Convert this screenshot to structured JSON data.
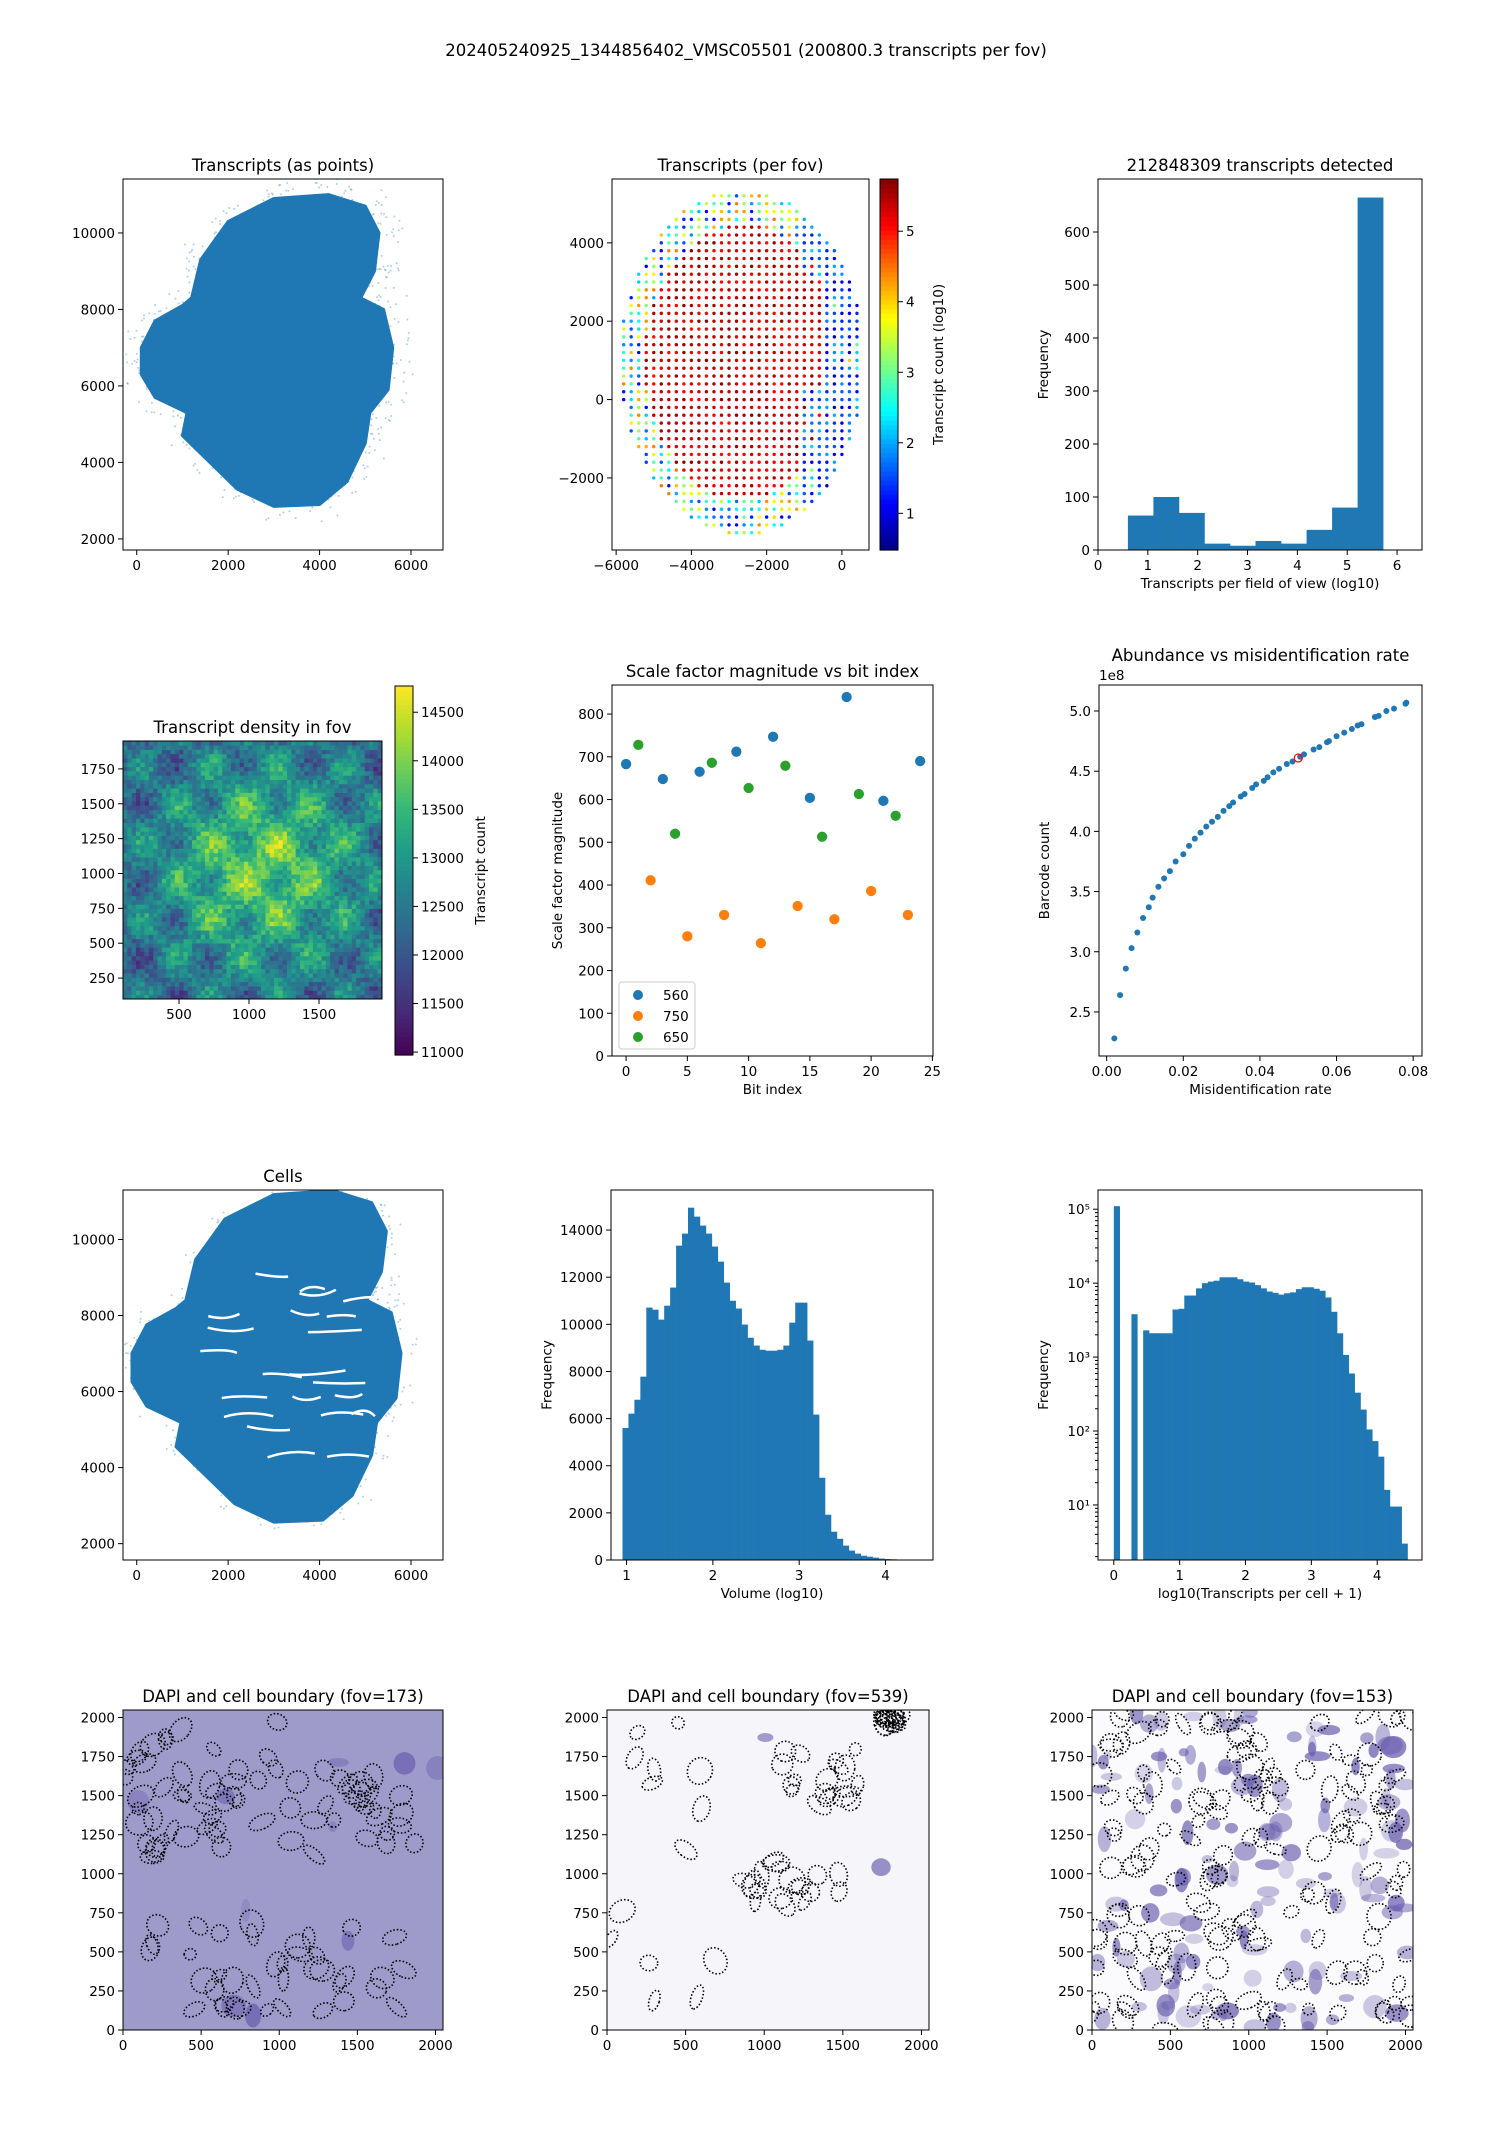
{
  "suptitle": "202405240925_1344856402_VMSC05501 (200800.3 transcripts per fov)",
  "chart_data": [
    {
      "type": "scatter",
      "title": "Transcripts (as points)",
      "xlabel": "",
      "ylabel": "",
      "xlim": [
        -300,
        6700
      ],
      "ylim": [
        1710,
        11410
      ],
      "xticks": [
        0,
        2000,
        4000,
        6000
      ],
      "xtick_labels": [
        "0",
        "2000",
        "4000",
        "6000"
      ],
      "yticks": [
        2000,
        4000,
        6000,
        8000,
        10000
      ],
      "ytick_labels": [
        "2000",
        "4000",
        "6000",
        "8000",
        "10000"
      ],
      "color": "#1f77b4"
    },
    {
      "type": "scatter",
      "title": "Transcripts (per fov)",
      "xlabel": "",
      "ylabel": "",
      "xlim": [
        -6110,
        720
      ],
      "ylim": [
        -3840,
        5630
      ],
      "xticks": [
        -6000,
        -4000,
        -2000,
        0
      ],
      "xtick_labels": [
        "−6000",
        "−4000",
        "−2000",
        "0"
      ],
      "yticks": [
        -2000,
        0,
        2000,
        4000
      ],
      "ytick_labels": [
        "−2000",
        "0",
        "2000",
        "4000"
      ],
      "fov_grid_spacing": 200,
      "colorbar": {
        "label": "Transcript count (log10)",
        "range": [
          0.48,
          5.74
        ],
        "ticks": [
          1,
          2,
          3,
          4,
          5
        ],
        "tick_labels": [
          "1",
          "2",
          "3",
          "4",
          "5"
        ],
        "cmap": "jet"
      }
    },
    {
      "type": "bar",
      "title": "212848309 transcripts detected",
      "xlabel": "Transcripts per field of view (log10)",
      "ylabel": "Frequency",
      "xlim": [
        0,
        6.5
      ],
      "ylim": [
        0,
        700
      ],
      "bin_start": 0.6,
      "bin_width": 0.512,
      "values": [
        65,
        100,
        70,
        12,
        8,
        17,
        12,
        38,
        80,
        665
      ],
      "xticks": [
        0,
        1,
        2,
        3,
        4,
        5,
        6
      ],
      "xtick_labels": [
        "0",
        "1",
        "2",
        "3",
        "4",
        "5",
        "6"
      ],
      "yticks": [
        0,
        100,
        200,
        300,
        400,
        500,
        600
      ],
      "ytick_labels": [
        "0",
        "100",
        "200",
        "300",
        "400",
        "500",
        "600"
      ],
      "color": "#1f77b4"
    },
    {
      "type": "heatmap",
      "title": "Transcript density in fov",
      "xlabel": "",
      "ylabel": "",
      "xlim": [
        100,
        1950
      ],
      "ylim": [
        100,
        1950
      ],
      "xticks": [
        500,
        1000,
        1500
      ],
      "xtick_labels": [
        "500",
        "1000",
        "1500"
      ],
      "yticks": [
        250,
        500,
        750,
        1000,
        1250,
        1500,
        1750
      ],
      "ytick_labels": [
        "250",
        "500",
        "750",
        "1000",
        "1250",
        "1500",
        "1750"
      ],
      "colorbar": {
        "label": "Transcript count",
        "range": [
          10970,
          14770
        ],
        "ticks": [
          11000,
          11500,
          12000,
          12500,
          13000,
          13500,
          14000,
          14500
        ],
        "tick_labels": [
          "11000",
          "11500",
          "12000",
          "12500",
          "13000",
          "13500",
          "14000",
          "14500"
        ],
        "cmap": "viridis"
      }
    },
    {
      "type": "scatter",
      "title": "Scale factor magnitude vs bit index",
      "xlabel": "Bit index",
      "ylabel": "Scale factor magnitude",
      "xlim": [
        -1.15,
        25.05
      ],
      "ylim": [
        0,
        868
      ],
      "xticks": [
        0,
        5,
        10,
        15,
        20,
        25
      ],
      "xtick_labels": [
        "0",
        "5",
        "10",
        "15",
        "20",
        "25"
      ],
      "yticks": [
        0,
        100,
        200,
        300,
        400,
        500,
        600,
        700,
        800
      ],
      "ytick_labels": [
        "0",
        "100",
        "200",
        "300",
        "400",
        "500",
        "600",
        "700",
        "800"
      ],
      "legend": "lower-left",
      "series": [
        {
          "name": "560",
          "color": "#1f77b4",
          "x": [
            0,
            3,
            6,
            9,
            12,
            15,
            18,
            21,
            24
          ],
          "y": [
            683,
            648,
            665,
            712,
            747,
            604,
            840,
            597,
            690
          ]
        },
        {
          "name": "750",
          "color": "#ff7f0e",
          "x": [
            2,
            5,
            8,
            11,
            14,
            17,
            20,
            23
          ],
          "y": [
            411,
            280,
            330,
            264,
            351,
            320,
            386,
            330
          ]
        },
        {
          "name": "650",
          "color": "#2ca02c",
          "x": [
            1,
            4,
            7,
            10,
            13,
            16,
            19,
            22
          ],
          "y": [
            728,
            520,
            686,
            627,
            679,
            513,
            613,
            562
          ]
        }
      ]
    },
    {
      "type": "scatter",
      "title": "Abundance vs misidentification rate",
      "xlabel": "Misidentification rate",
      "ylabel": "Barcode count",
      "offset_text": "1e8",
      "xlim": [
        -0.002,
        0.0823
      ],
      "ylim": [
        2.134,
        5.216
      ],
      "xticks": [
        0,
        0.02,
        0.04,
        0.06,
        0.08
      ],
      "xtick_labels": [
        "0.00",
        "0.02",
        "0.04",
        "0.06",
        "0.08"
      ],
      "yticks": [
        2.5,
        3.0,
        3.5,
        4.0,
        4.5,
        5.0
      ],
      "ytick_labels": [
        "2.5",
        "3.0",
        "3.5",
        "4.0",
        "4.5",
        "5.0"
      ],
      "color": "#1f77b4",
      "x": [
        0.002,
        0.0035,
        0.005,
        0.0065,
        0.008,
        0.0095,
        0.011,
        0.012,
        0.0135,
        0.015,
        0.0165,
        0.018,
        0.02,
        0.0215,
        0.023,
        0.0245,
        0.026,
        0.0275,
        0.029,
        0.0305,
        0.032,
        0.033,
        0.035,
        0.036,
        0.038,
        0.039,
        0.041,
        0.042,
        0.0435,
        0.045,
        0.047,
        0.0485,
        0.0505,
        0.0515,
        0.054,
        0.0555,
        0.0575,
        0.058,
        0.06,
        0.062,
        0.064,
        0.0655,
        0.0665,
        0.07,
        0.071,
        0.073,
        0.075,
        0.078,
        0.0782
      ],
      "y": [
        2.28,
        2.64,
        2.86,
        3.03,
        3.16,
        3.28,
        3.37,
        3.45,
        3.54,
        3.61,
        3.67,
        3.75,
        3.81,
        3.88,
        3.94,
        3.99,
        4.04,
        4.08,
        4.12,
        4.17,
        4.21,
        4.24,
        4.29,
        4.31,
        4.36,
        4.39,
        4.42,
        4.45,
        4.49,
        4.52,
        4.56,
        4.58,
        4.62,
        4.64,
        4.68,
        4.7,
        4.74,
        4.75,
        4.79,
        4.82,
        4.85,
        4.88,
        4.89,
        4.95,
        4.96,
        5.0,
        5.02,
        5.06,
        5.07
      ],
      "highlight": {
        "x": 0.05,
        "y": 4.61,
        "color": "#ff0000"
      }
    },
    {
      "type": "scatter",
      "title": "Cells",
      "xlabel": "",
      "ylabel": "",
      "xlim": [
        -300,
        6700
      ],
      "ylim": [
        1570,
        11300
      ],
      "xticks": [
        0,
        2000,
        4000,
        6000
      ],
      "xtick_labels": [
        "0",
        "2000",
        "4000",
        "6000"
      ],
      "yticks": [
        2000,
        4000,
        6000,
        8000,
        10000
      ],
      "ytick_labels": [
        "2000",
        "4000",
        "6000",
        "8000",
        "10000"
      ],
      "color": "#1f77b4"
    },
    {
      "type": "bar",
      "title": "",
      "xlabel": "Volume (log10)",
      "ylabel": "Frequency",
      "xlim": [
        0.82,
        4.55
      ],
      "ylim": [
        0,
        15700
      ],
      "bin_start": 0.953,
      "bin_width": 0.069,
      "values": [
        5600,
        6210,
        6800,
        7780,
        10710,
        10620,
        10200,
        10790,
        11560,
        13340,
        13850,
        14950,
        14570,
        14190,
        13850,
        13300,
        12660,
        11770,
        11000,
        10670,
        9990,
        9430,
        9100,
        8920,
        8880,
        8880,
        8920,
        9100,
        10070,
        10920,
        10920,
        9310,
        6170,
        3490,
        1920,
        1200,
        900,
        610,
        400,
        270,
        180,
        140,
        100,
        60,
        40,
        30
      ],
      "xticks": [
        1,
        2,
        3,
        4
      ],
      "xtick_labels": [
        "1",
        "2",
        "3",
        "4"
      ],
      "yticks": [
        0,
        2000,
        4000,
        6000,
        8000,
        10000,
        12000,
        14000
      ],
      "ytick_labels": [
        "0",
        "2000",
        "4000",
        "6000",
        "8000",
        "10000",
        "12000",
        "14000"
      ],
      "color": "#1f77b4"
    },
    {
      "type": "bar",
      "title": "",
      "xlabel": "log10(Transcripts per cell + 1)",
      "ylabel": "Frequency",
      "yscale": "log",
      "xlim": [
        -0.24,
        4.68
      ],
      "ylim": [
        1.8,
        182000
      ],
      "bin_start": 0,
      "bin_width": 0.0892,
      "values": [
        110000,
        0,
        0,
        3800,
        0,
        2300,
        2100,
        2100,
        2100,
        2100,
        4400,
        4500,
        6800,
        6800,
        8500,
        10000,
        10500,
        10800,
        12000,
        12000,
        12000,
        11300,
        10500,
        10200,
        9400,
        8500,
        7700,
        7400,
        7000,
        7300,
        7500,
        8300,
        8800,
        8800,
        8400,
        7900,
        6400,
        4100,
        2100,
        1070,
        600,
        330,
        195,
        105,
        73,
        45,
        16,
        9.5,
        9.5,
        3.0
      ],
      "xticks": [
        0,
        1,
        2,
        3,
        4
      ],
      "xtick_labels": [
        "0",
        "1",
        "2",
        "3",
        "4"
      ],
      "yticks": [
        10,
        100,
        1000,
        10000,
        100000
      ],
      "ytick_labels": [
        "10¹",
        "10²",
        "10³",
        "10⁴",
        "10⁵"
      ],
      "color": "#1f77b4"
    },
    {
      "type": "image",
      "title": "DAPI and cell boundary (fov=173)",
      "xlim": [
        0,
        2048
      ],
      "ylim": [
        0,
        2048
      ],
      "xticks": [
        0,
        500,
        1000,
        1500,
        2000
      ],
      "xtick_labels": [
        "0",
        "500",
        "1000",
        "1500",
        "2000"
      ],
      "yticks": [
        0,
        250,
        500,
        750,
        1000,
        1250,
        1500,
        1750,
        2000
      ],
      "ytick_labels": [
        "0",
        "250",
        "500",
        "750",
        "1000",
        "1250",
        "1500",
        "1750",
        "2000"
      ],
      "background": "#9e9bca"
    },
    {
      "type": "image",
      "title": "DAPI and cell boundary (fov=539)",
      "xlim": [
        0,
        2048
      ],
      "ylim": [
        0,
        2048
      ],
      "xticks": [
        0,
        500,
        1000,
        1500,
        2000
      ],
      "xtick_labels": [
        "0",
        "500",
        "1000",
        "1500",
        "2000"
      ],
      "yticks": [
        0,
        250,
        500,
        750,
        1000,
        1250,
        1500,
        1750,
        2000
      ],
      "ytick_labels": [
        "0",
        "250",
        "500",
        "750",
        "1000",
        "1250",
        "1500",
        "1750",
        "2000"
      ],
      "background": "#f6f5fa"
    },
    {
      "type": "image",
      "title": "DAPI and cell boundary (fov=153)",
      "xlim": [
        0,
        2048
      ],
      "ylim": [
        0,
        2048
      ],
      "xticks": [
        0,
        500,
        1000,
        1500,
        2000
      ],
      "xtick_labels": [
        "0",
        "500",
        "1000",
        "1500",
        "2000"
      ],
      "yticks": [
        0,
        250,
        500,
        750,
        1000,
        1250,
        1500,
        1750,
        2000
      ],
      "ytick_labels": [
        "0",
        "250",
        "500",
        "750",
        "1000",
        "1250",
        "1500",
        "1750",
        "2000"
      ],
      "background": "#fbfbfd"
    }
  ]
}
